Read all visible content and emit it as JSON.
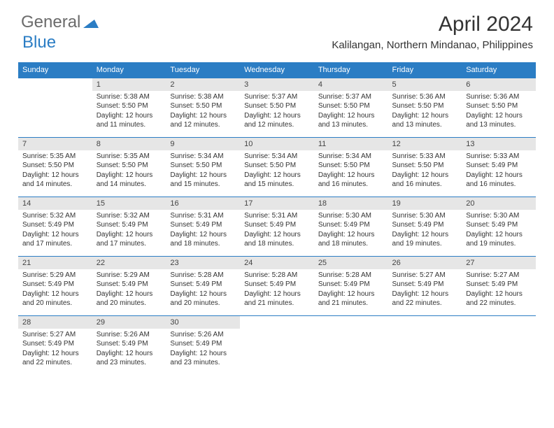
{
  "logo": {
    "top": "General",
    "bottom": "Blue"
  },
  "title": "April 2024",
  "location": "Kalilangan, Northern Mindanao, Philippines",
  "colors": {
    "header_bg": "#2b7dc4",
    "header_text": "#ffffff",
    "daynum_bg": "#e6e6e6",
    "border": "#2b7dc4",
    "body_text": "#333333",
    "logo_gray": "#6b6b6b",
    "logo_blue": "#2b7dc4"
  },
  "day_headers": [
    "Sunday",
    "Monday",
    "Tuesday",
    "Wednesday",
    "Thursday",
    "Friday",
    "Saturday"
  ],
  "weeks": [
    {
      "nums": [
        "",
        "1",
        "2",
        "3",
        "4",
        "5",
        "6"
      ],
      "cells": [
        null,
        {
          "sr": "Sunrise: 5:38 AM",
          "ss": "Sunset: 5:50 PM",
          "d1": "Daylight: 12 hours",
          "d2": "and 11 minutes."
        },
        {
          "sr": "Sunrise: 5:38 AM",
          "ss": "Sunset: 5:50 PM",
          "d1": "Daylight: 12 hours",
          "d2": "and 12 minutes."
        },
        {
          "sr": "Sunrise: 5:37 AM",
          "ss": "Sunset: 5:50 PM",
          "d1": "Daylight: 12 hours",
          "d2": "and 12 minutes."
        },
        {
          "sr": "Sunrise: 5:37 AM",
          "ss": "Sunset: 5:50 PM",
          "d1": "Daylight: 12 hours",
          "d2": "and 13 minutes."
        },
        {
          "sr": "Sunrise: 5:36 AM",
          "ss": "Sunset: 5:50 PM",
          "d1": "Daylight: 12 hours",
          "d2": "and 13 minutes."
        },
        {
          "sr": "Sunrise: 5:36 AM",
          "ss": "Sunset: 5:50 PM",
          "d1": "Daylight: 12 hours",
          "d2": "and 13 minutes."
        }
      ]
    },
    {
      "nums": [
        "7",
        "8",
        "9",
        "10",
        "11",
        "12",
        "13"
      ],
      "cells": [
        {
          "sr": "Sunrise: 5:35 AM",
          "ss": "Sunset: 5:50 PM",
          "d1": "Daylight: 12 hours",
          "d2": "and 14 minutes."
        },
        {
          "sr": "Sunrise: 5:35 AM",
          "ss": "Sunset: 5:50 PM",
          "d1": "Daylight: 12 hours",
          "d2": "and 14 minutes."
        },
        {
          "sr": "Sunrise: 5:34 AM",
          "ss": "Sunset: 5:50 PM",
          "d1": "Daylight: 12 hours",
          "d2": "and 15 minutes."
        },
        {
          "sr": "Sunrise: 5:34 AM",
          "ss": "Sunset: 5:50 PM",
          "d1": "Daylight: 12 hours",
          "d2": "and 15 minutes."
        },
        {
          "sr": "Sunrise: 5:34 AM",
          "ss": "Sunset: 5:50 PM",
          "d1": "Daylight: 12 hours",
          "d2": "and 16 minutes."
        },
        {
          "sr": "Sunrise: 5:33 AM",
          "ss": "Sunset: 5:50 PM",
          "d1": "Daylight: 12 hours",
          "d2": "and 16 minutes."
        },
        {
          "sr": "Sunrise: 5:33 AM",
          "ss": "Sunset: 5:49 PM",
          "d1": "Daylight: 12 hours",
          "d2": "and 16 minutes."
        }
      ]
    },
    {
      "nums": [
        "14",
        "15",
        "16",
        "17",
        "18",
        "19",
        "20"
      ],
      "cells": [
        {
          "sr": "Sunrise: 5:32 AM",
          "ss": "Sunset: 5:49 PM",
          "d1": "Daylight: 12 hours",
          "d2": "and 17 minutes."
        },
        {
          "sr": "Sunrise: 5:32 AM",
          "ss": "Sunset: 5:49 PM",
          "d1": "Daylight: 12 hours",
          "d2": "and 17 minutes."
        },
        {
          "sr": "Sunrise: 5:31 AM",
          "ss": "Sunset: 5:49 PM",
          "d1": "Daylight: 12 hours",
          "d2": "and 18 minutes."
        },
        {
          "sr": "Sunrise: 5:31 AM",
          "ss": "Sunset: 5:49 PM",
          "d1": "Daylight: 12 hours",
          "d2": "and 18 minutes."
        },
        {
          "sr": "Sunrise: 5:30 AM",
          "ss": "Sunset: 5:49 PM",
          "d1": "Daylight: 12 hours",
          "d2": "and 18 minutes."
        },
        {
          "sr": "Sunrise: 5:30 AM",
          "ss": "Sunset: 5:49 PM",
          "d1": "Daylight: 12 hours",
          "d2": "and 19 minutes."
        },
        {
          "sr": "Sunrise: 5:30 AM",
          "ss": "Sunset: 5:49 PM",
          "d1": "Daylight: 12 hours",
          "d2": "and 19 minutes."
        }
      ]
    },
    {
      "nums": [
        "21",
        "22",
        "23",
        "24",
        "25",
        "26",
        "27"
      ],
      "cells": [
        {
          "sr": "Sunrise: 5:29 AM",
          "ss": "Sunset: 5:49 PM",
          "d1": "Daylight: 12 hours",
          "d2": "and 20 minutes."
        },
        {
          "sr": "Sunrise: 5:29 AM",
          "ss": "Sunset: 5:49 PM",
          "d1": "Daylight: 12 hours",
          "d2": "and 20 minutes."
        },
        {
          "sr": "Sunrise: 5:28 AM",
          "ss": "Sunset: 5:49 PM",
          "d1": "Daylight: 12 hours",
          "d2": "and 20 minutes."
        },
        {
          "sr": "Sunrise: 5:28 AM",
          "ss": "Sunset: 5:49 PM",
          "d1": "Daylight: 12 hours",
          "d2": "and 21 minutes."
        },
        {
          "sr": "Sunrise: 5:28 AM",
          "ss": "Sunset: 5:49 PM",
          "d1": "Daylight: 12 hours",
          "d2": "and 21 minutes."
        },
        {
          "sr": "Sunrise: 5:27 AM",
          "ss": "Sunset: 5:49 PM",
          "d1": "Daylight: 12 hours",
          "d2": "and 22 minutes."
        },
        {
          "sr": "Sunrise: 5:27 AM",
          "ss": "Sunset: 5:49 PM",
          "d1": "Daylight: 12 hours",
          "d2": "and 22 minutes."
        }
      ]
    },
    {
      "nums": [
        "28",
        "29",
        "30",
        "",
        "",
        "",
        ""
      ],
      "cells": [
        {
          "sr": "Sunrise: 5:27 AM",
          "ss": "Sunset: 5:49 PM",
          "d1": "Daylight: 12 hours",
          "d2": "and 22 minutes."
        },
        {
          "sr": "Sunrise: 5:26 AM",
          "ss": "Sunset: 5:49 PM",
          "d1": "Daylight: 12 hours",
          "d2": "and 23 minutes."
        },
        {
          "sr": "Sunrise: 5:26 AM",
          "ss": "Sunset: 5:49 PM",
          "d1": "Daylight: 12 hours",
          "d2": "and 23 minutes."
        },
        null,
        null,
        null,
        null
      ]
    }
  ]
}
